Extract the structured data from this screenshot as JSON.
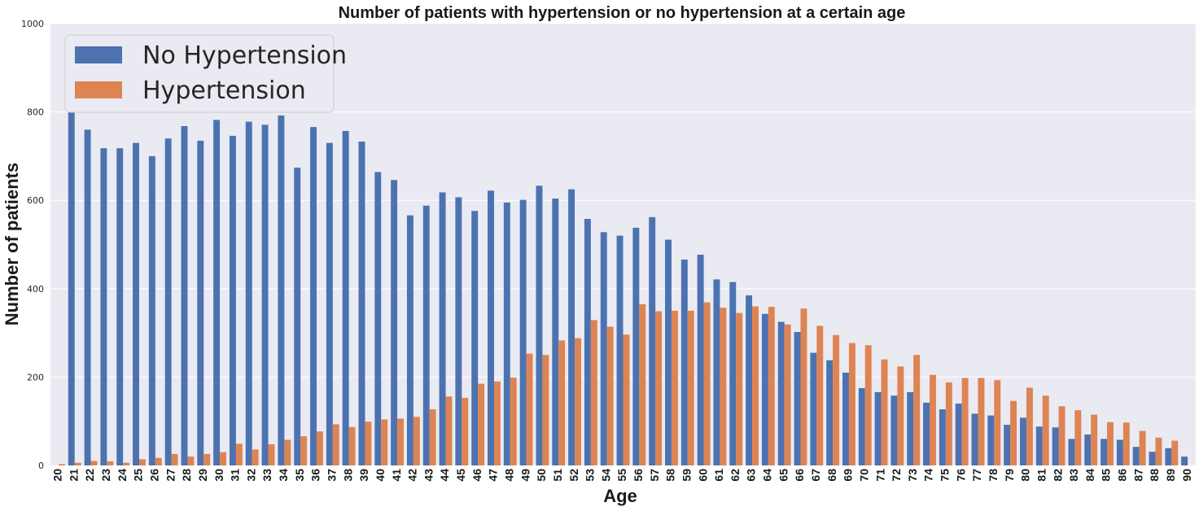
{
  "chart_data": {
    "type": "bar",
    "title": "Number of patients with hypertension or no hypertension at a certain age",
    "xlabel": "Age",
    "ylabel": "Number of patients",
    "ylim": [
      0,
      1000
    ],
    "yticks": [
      "0",
      "200",
      "400",
      "600",
      "800",
      "1000"
    ],
    "grid": "horizontal",
    "legend_position": "top-left",
    "categories": [
      "20",
      "21",
      "22",
      "23",
      "24",
      "25",
      "26",
      "27",
      "28",
      "29",
      "30",
      "31",
      "32",
      "33",
      "34",
      "35",
      "36",
      "37",
      "38",
      "39",
      "40",
      "41",
      "42",
      "43",
      "44",
      "45",
      "46",
      "47",
      "48",
      "49",
      "50",
      "51",
      "52",
      "53",
      "54",
      "55",
      "56",
      "57",
      "58",
      "59",
      "60",
      "61",
      "62",
      "63",
      "64",
      "65",
      "66",
      "67",
      "68",
      "69",
      "70",
      "71",
      "72",
      "73",
      "74",
      "75",
      "76",
      "77",
      "78",
      "79",
      "80",
      "81",
      "82",
      "83",
      "84",
      "85",
      "86",
      "87",
      "88",
      "89",
      "90"
    ],
    "series": [
      {
        "name": "No Hypertension",
        "color": "#4c72b0",
        "values": [
          0,
          820,
          760,
          718,
          718,
          730,
          700,
          740,
          768,
          735,
          782,
          746,
          778,
          771,
          792,
          674,
          766,
          730,
          757,
          733,
          664,
          646,
          566,
          588,
          618,
          607,
          576,
          622,
          595,
          601,
          633,
          604,
          625,
          558,
          528,
          520,
          538,
          562,
          511,
          466,
          477,
          421,
          415,
          385,
          343,
          325,
          302,
          255,
          238,
          210,
          175,
          166,
          158,
          166,
          142,
          127,
          140,
          117,
          113,
          92,
          108,
          88,
          86,
          60,
          70,
          60,
          58,
          42,
          31,
          39,
          20
        ],
        "show_zero": [
          false,
          true,
          true,
          true,
          true,
          true,
          true,
          true,
          true,
          true,
          true,
          true,
          true,
          true,
          true,
          true,
          true,
          true,
          true,
          true,
          true,
          true,
          true,
          true,
          true,
          true,
          true,
          true,
          true,
          true,
          true,
          true,
          true,
          true,
          true,
          true,
          true,
          true,
          true,
          true,
          true,
          true,
          true,
          true,
          true,
          true,
          true,
          true,
          true,
          true,
          true,
          true,
          true,
          true,
          true,
          true,
          true,
          true,
          true,
          true,
          true,
          true,
          true,
          true,
          true,
          true,
          true,
          true,
          true,
          true,
          true
        ]
      },
      {
        "name": "Hypertension",
        "color": "#dd8452",
        "values": [
          3,
          6,
          10,
          9,
          6,
          14,
          17,
          26,
          20,
          26,
          30,
          49,
          36,
          48,
          58,
          66,
          77,
          93,
          87,
          99,
          104,
          106,
          110,
          127,
          156,
          153,
          185,
          190,
          199,
          253,
          250,
          283,
          288,
          329,
          314,
          296,
          365,
          349,
          350,
          350,
          369,
          357,
          345,
          360,
          359,
          319,
          355,
          316,
          295,
          277,
          272,
          240,
          224,
          250,
          205,
          188,
          198,
          198,
          193,
          146,
          176,
          158,
          134,
          125,
          115,
          98,
          97,
          78,
          63,
          56,
          0
        ],
        "show_zero": [
          true,
          true,
          true,
          true,
          true,
          true,
          true,
          true,
          true,
          true,
          true,
          true,
          true,
          true,
          true,
          true,
          true,
          true,
          true,
          true,
          true,
          true,
          true,
          true,
          true,
          true,
          true,
          true,
          true,
          true,
          true,
          true,
          true,
          true,
          true,
          true,
          true,
          true,
          true,
          true,
          true,
          true,
          true,
          true,
          true,
          true,
          true,
          true,
          true,
          true,
          true,
          true,
          true,
          true,
          true,
          true,
          true,
          true,
          true,
          true,
          true,
          true,
          true,
          true,
          true,
          true,
          true,
          true,
          true,
          true,
          false
        ]
      }
    ]
  }
}
